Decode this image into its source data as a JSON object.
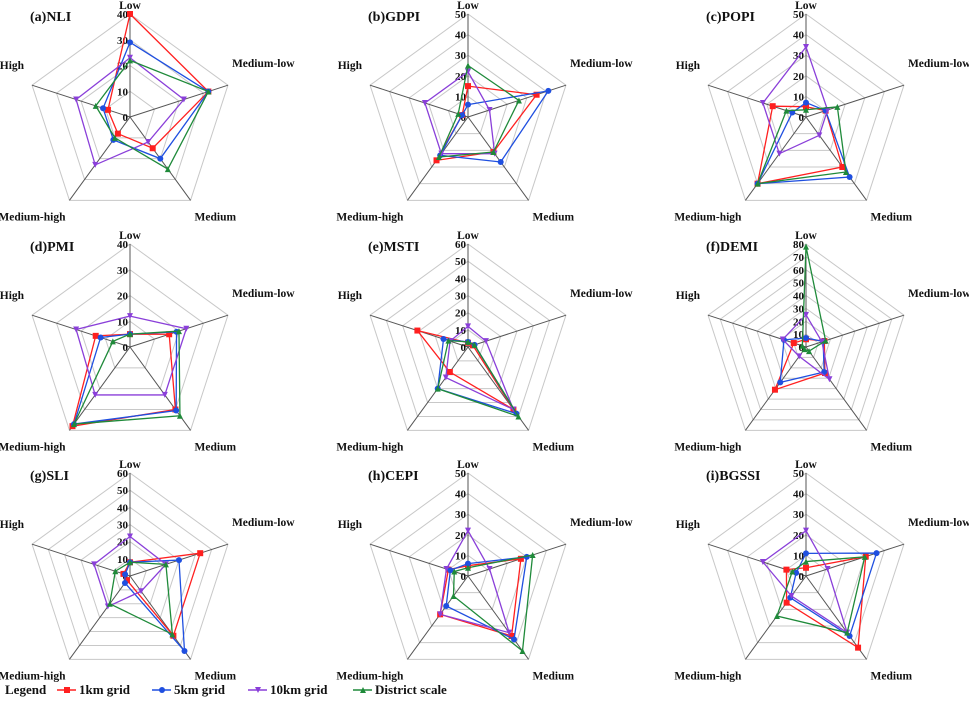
{
  "colors": {
    "1km": "#ff2020",
    "5km": "#1f4fe0",
    "10km": "#8a3fd9",
    "district": "#1f8a3a",
    "grid": "#c8c8c8",
    "axis": "#555555"
  },
  "legend": {
    "title": "Legend",
    "items": [
      {
        "key": "1km",
        "label": "1km  grid",
        "marker": "square"
      },
      {
        "key": "5km",
        "label": "5km  grid",
        "marker": "circle"
      },
      {
        "key": "10km",
        "label": "10km  grid",
        "marker": "triangle-down"
      },
      {
        "key": "district",
        "label": "District scale",
        "marker": "triangle-up"
      }
    ]
  },
  "chart_data": [
    {
      "type": "radar",
      "title": "(a)NLI",
      "axes": [
        "Low",
        "Medium-low",
        "Medium",
        "Medium-high",
        "High"
      ],
      "rmax": 40,
      "ticks": [
        0,
        10,
        20,
        30,
        40
      ],
      "series": [
        {
          "name": "1km grid",
          "key": "1km",
          "values": [
            40,
            32,
            15,
            8,
            9
          ]
        },
        {
          "name": "5km grid",
          "key": "5km",
          "values": [
            29,
            32,
            20,
            11,
            11
          ]
        },
        {
          "name": "10km grid",
          "key": "10km",
          "values": [
            23,
            22,
            12,
            23,
            22
          ]
        },
        {
          "name": "District scale",
          "key": "district",
          "values": [
            22,
            32,
            25,
            10,
            14
          ]
        }
      ]
    },
    {
      "type": "radar",
      "title": "(b)GDPI",
      "axes": [
        "Low",
        "Medium-low",
        "Medium",
        "Medium-high",
        "High"
      ],
      "rmax": 50,
      "ticks": [
        0,
        10,
        20,
        30,
        40,
        50
      ],
      "series": [
        {
          "name": "1km grid",
          "key": "1km",
          "values": [
            15,
            35,
            21,
            26,
            3
          ]
        },
        {
          "name": "5km grid",
          "key": "5km",
          "values": [
            6,
            41,
            27,
            23,
            3
          ]
        },
        {
          "name": "10km grid",
          "key": "10km",
          "values": [
            22,
            11,
            22,
            22,
            22
          ]
        },
        {
          "name": "District scale",
          "key": "district",
          "values": [
            25,
            26,
            21,
            24,
            5
          ]
        }
      ]
    },
    {
      "type": "radar",
      "title": "(c)POPI",
      "axes": [
        "Low",
        "Medium-low",
        "Medium",
        "Medium-high",
        "High"
      ],
      "rmax": 50,
      "ticks": [
        0,
        10,
        20,
        30,
        40,
        50
      ],
      "series": [
        {
          "name": "1km grid",
          "key": "1km",
          "values": [
            5,
            10,
            30,
            40,
            17
          ]
        },
        {
          "name": "5km grid",
          "key": "5km",
          "values": [
            7,
            10,
            36,
            40,
            7
          ]
        },
        {
          "name": "10km grid",
          "key": "10km",
          "values": [
            34,
            11,
            11,
            22,
            22
          ]
        },
        {
          "name": "District scale",
          "key": "district",
          "values": [
            3.5,
            16,
            33,
            40,
            10
          ]
        }
      ]
    },
    {
      "type": "radar",
      "title": "(d)PMI",
      "axes": [
        "Low",
        "Medium-low",
        "Medium",
        "Medium-high",
        "High"
      ],
      "rmax": 40,
      "ticks": [
        0,
        10,
        20,
        30,
        40
      ],
      "series": [
        {
          "name": "1km grid",
          "key": "1km",
          "values": [
            5,
            16,
            30,
            38,
            14
          ]
        },
        {
          "name": "5km grid",
          "key": "5km",
          "values": [
            5,
            19,
            30.5,
            37,
            12
          ]
        },
        {
          "name": "10km grid",
          "key": "10km",
          "values": [
            12,
            23,
            23,
            23,
            22
          ]
        },
        {
          "name": "District scale",
          "key": "district",
          "values": [
            5,
            20,
            33,
            37,
            7
          ]
        }
      ]
    },
    {
      "type": "radar",
      "title": "(e)MSTI",
      "axes": [
        "Low",
        "Medium-low",
        "Medium",
        "Medium-high",
        "High"
      ],
      "rmax": 60,
      "ticks": [
        0,
        10,
        20,
        30,
        40,
        50,
        60
      ],
      "series": [
        {
          "name": "1km grid",
          "key": "1km",
          "values": [
            2.5,
            3,
            45,
            18,
            31
          ]
        },
        {
          "name": "5km grid",
          "key": "5km",
          "values": [
            3,
            4,
            48,
            30,
            15
          ]
        },
        {
          "name": "10km grid",
          "key": "10km",
          "values": [
            12,
            11,
            45,
            22,
            11
          ]
        },
        {
          "name": "District scale",
          "key": "district",
          "values": [
            3,
            4,
            50,
            30,
            12
          ]
        }
      ]
    },
    {
      "type": "radar",
      "title": "(f)DEMI",
      "axes": [
        "Low",
        "Medium-low",
        "Medium",
        "Medium-high",
        "High"
      ],
      "rmax": 80,
      "ticks": [
        0,
        10,
        20,
        30,
        40,
        50,
        60,
        70,
        80
      ],
      "series": [
        {
          "name": "1km grid",
          "key": "1km",
          "values": [
            6,
            15,
            25,
            41,
            10
          ]
        },
        {
          "name": "5km grid",
          "key": "5km",
          "values": [
            7,
            14,
            24,
            34,
            18
          ]
        },
        {
          "name": "10km grid",
          "key": "10km",
          "values": [
            25,
            13,
            31,
            9,
            19
          ]
        },
        {
          "name": "District scale",
          "key": "district",
          "values": [
            78,
            16,
            4,
            2,
            3
          ]
        }
      ]
    },
    {
      "type": "radar",
      "title": "(g)SLI",
      "axes": [
        "Low",
        "Medium-low",
        "Medium",
        "Medium-high",
        "High"
      ],
      "rmax": 60,
      "ticks": [
        0,
        10,
        20,
        30,
        40,
        50,
        60
      ],
      "series": [
        {
          "name": "1km grid",
          "key": "1km",
          "values": [
            8,
            43,
            43,
            3,
            4
          ]
        },
        {
          "name": "5km grid",
          "key": "5km",
          "values": [
            8,
            30,
            54,
            5,
            3
          ]
        },
        {
          "name": "10km grid",
          "key": "10km",
          "values": [
            23,
            22,
            11,
            22,
            22
          ]
        },
        {
          "name": "District scale",
          "key": "district",
          "values": [
            8,
            22,
            42,
            20,
            9
          ]
        }
      ]
    },
    {
      "type": "radar",
      "title": "(h)CEPI",
      "axes": [
        "Low",
        "Medium-low",
        "Medium",
        "Medium-high",
        "High"
      ],
      "rmax": 50,
      "ticks": [
        0,
        10,
        20,
        30,
        40,
        50
      ],
      "series": [
        {
          "name": "1km grid",
          "key": "1km",
          "values": [
            5,
            27,
            36,
            23,
            10
          ]
        },
        {
          "name": "5km grid",
          "key": "5km",
          "values": [
            6,
            30,
            38,
            18,
            9
          ]
        },
        {
          "name": "10km grid",
          "key": "10km",
          "values": [
            22,
            11,
            34,
            23,
            11
          ]
        },
        {
          "name": "District scale",
          "key": "district",
          "values": [
            4,
            33,
            45,
            12,
            7
          ]
        }
      ]
    },
    {
      "type": "radar",
      "title": "(i)BGSSI",
      "axes": [
        "Low",
        "Medium-low",
        "Medium",
        "Medium-high",
        "High"
      ],
      "rmax": 50,
      "ticks": [
        0,
        10,
        20,
        30,
        40,
        50
      ],
      "series": [
        {
          "name": "1km grid",
          "key": "1km",
          "values": [
            4,
            30.5,
            43,
            16,
            10
          ]
        },
        {
          "name": "5km grid",
          "key": "5km",
          "values": [
            11,
            36,
            36,
            13,
            5
          ]
        },
        {
          "name": "10km grid",
          "key": "10km",
          "values": [
            22,
            11,
            34,
            12,
            22
          ]
        },
        {
          "name": "District scale",
          "key": "district",
          "values": [
            7,
            30,
            34,
            24,
            7
          ]
        }
      ]
    }
  ]
}
